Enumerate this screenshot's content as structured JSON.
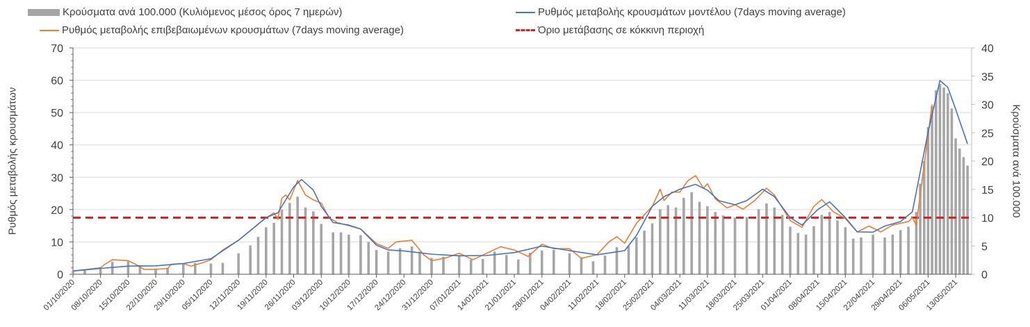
{
  "chart_data": {
    "type": "bar+line",
    "legend": [
      {
        "label": "Κρούσματα ανά 100.000 (Κυλιόμενος μέσος όρος 7 ημερών)",
        "color": "#a6a6a6",
        "kind": "bar"
      },
      {
        "label": "Ρυθμός μεταβολής κρουσμάτων μοντέλου (7days moving average)",
        "color": "#4472c4",
        "kind": "line"
      },
      {
        "label": "Ρυθμός μεταβολής επιβεβαιωμένων κρουσμάτων (7days moving average)",
        "color": "#ed7d31",
        "kind": "line"
      },
      {
        "label": "Όριο μετάβασης σε κόκκινη περιοχή",
        "color": "#e02020",
        "kind": "dashed"
      }
    ],
    "legend_position": "top",
    "ylabel_left": "Ρυθμός μεταβολής κρουσμάτων",
    "ylabel_right": "Κρούσματα ανά 100.000",
    "ylim_left": [
      0,
      70
    ],
    "ylim_right": [
      0,
      40
    ],
    "yticks_left": [
      "0",
      "10",
      "20",
      "30",
      "40",
      "50",
      "60",
      "70"
    ],
    "yticks_right": [
      "0",
      "5",
      "10",
      "15",
      "20",
      "25",
      "30",
      "35",
      "40"
    ],
    "x_start_date": "01/10/2020",
    "x_days_total": 228,
    "xtick_labels": [
      "01/10/2020",
      "08/10/2020",
      "15/10/2020",
      "22/10/2020",
      "29/10/2020",
      "05/11/2020",
      "12/11/2020",
      "19/11/2020",
      "26/11/2020",
      "03/12/2020",
      "10/12/2020",
      "17/12/2020",
      "24/12/2020",
      "31/12/2020",
      "07/01/2021",
      "14/01/2021",
      "21/01/2021",
      "28/01/2021",
      "04/02/2021",
      "11/02/2021",
      "18/02/2021",
      "25/02/2021",
      "04/03/2021",
      "11/03/2021",
      "18/03/2021",
      "25/03/2021",
      "01/04/2021",
      "08/04/2021",
      "15/04/2021",
      "22/04/2021",
      "29/04/2021",
      "06/05/2021",
      "13/05/2021"
    ],
    "xtick_step_days": 7,
    "threshold_left": 17.5,
    "threshold_right": 10,
    "bars_right_axis": [
      [
        0,
        0.6
      ],
      [
        3,
        0.8
      ],
      [
        7,
        1.2
      ],
      [
        10,
        2.2
      ],
      [
        14,
        2.3
      ],
      [
        17,
        1.6
      ],
      [
        21,
        1.0
      ],
      [
        24,
        1.1
      ],
      [
        28,
        1.8
      ],
      [
        31,
        2.0
      ],
      [
        35,
        1.9
      ],
      [
        38,
        2.0
      ],
      [
        42,
        3.7
      ],
      [
        45,
        5.1
      ],
      [
        47,
        6.6
      ],
      [
        49,
        8.3
      ],
      [
        51,
        9.1
      ],
      [
        53,
        11.4
      ],
      [
        55,
        12.6
      ],
      [
        57,
        13.7
      ],
      [
        59,
        11.8
      ],
      [
        61,
        11.1
      ],
      [
        63,
        8.9
      ],
      [
        66,
        7.4
      ],
      [
        68,
        7.4
      ],
      [
        70,
        7.0
      ],
      [
        73,
        6.9
      ],
      [
        75,
        5.7
      ],
      [
        77,
        4.3
      ],
      [
        80,
        4.0
      ],
      [
        83,
        4.6
      ],
      [
        86,
        4.9
      ],
      [
        88,
        4.0
      ],
      [
        91,
        2.9
      ],
      [
        94,
        3.1
      ],
      [
        98,
        3.4
      ],
      [
        101,
        2.6
      ],
      [
        104,
        2.7
      ],
      [
        107,
        4.0
      ],
      [
        110,
        3.4
      ],
      [
        113,
        2.6
      ],
      [
        116,
        3.8
      ],
      [
        119,
        4.2
      ],
      [
        122,
        4.3
      ],
      [
        126,
        3.7
      ],
      [
        129,
        3.0
      ],
      [
        132,
        2.3
      ],
      [
        135,
        3.3
      ],
      [
        138,
        4.8
      ],
      [
        141,
        5.0
      ],
      [
        143,
        6.5
      ],
      [
        145,
        7.7
      ],
      [
        147,
        9.0
      ],
      [
        149,
        11.5
      ],
      [
        151,
        12.2
      ],
      [
        153,
        11.8
      ],
      [
        155,
        13.5
      ],
      [
        157,
        14.5
      ],
      [
        159,
        12.8
      ],
      [
        161,
        12.0
      ],
      [
        163,
        11.0
      ],
      [
        165,
        10.4
      ],
      [
        168,
        10.0
      ],
      [
        171,
        10.1
      ],
      [
        174,
        11.5
      ],
      [
        176,
        12.5
      ],
      [
        178,
        11.8
      ],
      [
        180,
        10.5
      ],
      [
        182,
        8.4
      ],
      [
        184,
        7.3
      ],
      [
        186,
        7.0
      ],
      [
        188,
        8.5
      ],
      [
        190,
        10.5
      ],
      [
        192,
        11.0
      ],
      [
        194,
        9.5
      ],
      [
        196,
        8.3
      ],
      [
        198,
        6.3
      ],
      [
        200,
        6.5
      ],
      [
        203,
        7.0
      ],
      [
        206,
        6.5
      ],
      [
        208,
        7.0
      ],
      [
        210,
        7.8
      ],
      [
        212,
        8.4
      ],
      [
        214,
        11.0
      ],
      [
        215,
        16.0
      ],
      [
        216,
        20.0
      ],
      [
        217,
        26.0
      ],
      [
        218,
        29.7
      ],
      [
        219,
        32.5
      ],
      [
        220,
        33.6
      ],
      [
        221,
        33.0
      ],
      [
        222,
        32.0
      ],
      [
        223,
        29.3
      ],
      [
        224,
        24.0
      ],
      [
        225,
        22.2
      ],
      [
        226,
        20.7
      ],
      [
        227,
        19.2
      ]
    ],
    "model_line_left_axis": [
      [
        0,
        1
      ],
      [
        7,
        1.8
      ],
      [
        14,
        2.5
      ],
      [
        21,
        2.6
      ],
      [
        28,
        3.3
      ],
      [
        35,
        4.8
      ],
      [
        42,
        10.5
      ],
      [
        49,
        17.5
      ],
      [
        52,
        19
      ],
      [
        56,
        27
      ],
      [
        58,
        29.3
      ],
      [
        61,
        26
      ],
      [
        63,
        21
      ],
      [
        66,
        16
      ],
      [
        70,
        15.2
      ],
      [
        73,
        14
      ],
      [
        77,
        9
      ],
      [
        80,
        7.5
      ],
      [
        84,
        7.2
      ],
      [
        91,
        6.2
      ],
      [
        98,
        5.7
      ],
      [
        105,
        5.8
      ],
      [
        112,
        6.7
      ],
      [
        119,
        8.7
      ],
      [
        126,
        7.3
      ],
      [
        133,
        6.0
      ],
      [
        140,
        7.3
      ],
      [
        143,
        12
      ],
      [
        147,
        21
      ],
      [
        150,
        24
      ],
      [
        154,
        26.3
      ],
      [
        158,
        27.8
      ],
      [
        161,
        26
      ],
      [
        164,
        22.7
      ],
      [
        168,
        21.5
      ],
      [
        171,
        22.8
      ],
      [
        175,
        26.3
      ],
      [
        178,
        24
      ],
      [
        182,
        17.5
      ],
      [
        185,
        15.2
      ],
      [
        189,
        20
      ],
      [
        192,
        22.4
      ],
      [
        196,
        17.5
      ],
      [
        199,
        13.1
      ],
      [
        203,
        13
      ],
      [
        206,
        14.9
      ],
      [
        210,
        16.3
      ],
      [
        213,
        19.3
      ],
      [
        217,
        44
      ],
      [
        220,
        59.9
      ],
      [
        222,
        57.8
      ],
      [
        224,
        51
      ],
      [
        227,
        40.3
      ]
    ],
    "confirmed_line_left_axis": [
      [
        0,
        1
      ],
      [
        3.5,
        1.5
      ],
      [
        7,
        2
      ],
      [
        8,
        3
      ],
      [
        10,
        4.5
      ],
      [
        14,
        4.2
      ],
      [
        16,
        3
      ],
      [
        18,
        1.5
      ],
      [
        21,
        1.5
      ],
      [
        24,
        1.8
      ],
      [
        25,
        3.1
      ],
      [
        28,
        3.3
      ],
      [
        30,
        2.5
      ],
      [
        33,
        3.6
      ],
      [
        35,
        4.5
      ],
      [
        38,
        7.5
      ],
      [
        42,
        10.5
      ],
      [
        45,
        13.5
      ],
      [
        49,
        17.5
      ],
      [
        51,
        19
      ],
      [
        52,
        17
      ],
      [
        53,
        23.5
      ],
      [
        54,
        24.5
      ],
      [
        55,
        23
      ],
      [
        57,
        29
      ],
      [
        59,
        24.5
      ],
      [
        61,
        23
      ],
      [
        63,
        22
      ],
      [
        65,
        17.5
      ],
      [
        67,
        16
      ],
      [
        70,
        15
      ],
      [
        73,
        14
      ],
      [
        77,
        9.5
      ],
      [
        80,
        8
      ],
      [
        82,
        10
      ],
      [
        86,
        10.5
      ],
      [
        89,
        6
      ],
      [
        91,
        4.2
      ],
      [
        94.5,
        5
      ],
      [
        98,
        6.5
      ],
      [
        101.5,
        4.5
      ],
      [
        105,
        6.5
      ],
      [
        108.5,
        8.5
      ],
      [
        112,
        7.5
      ],
      [
        115.5,
        5.5
      ],
      [
        119,
        9.3
      ],
      [
        122,
        7.9
      ],
      [
        126,
        7.9
      ],
      [
        129,
        4.9
      ],
      [
        133,
        6.1
      ],
      [
        136,
        10
      ],
      [
        138,
        11.6
      ],
      [
        140,
        9.6
      ],
      [
        143,
        15.8
      ],
      [
        147,
        21
      ],
      [
        149,
        26.3
      ],
      [
        150,
        22.8
      ],
      [
        152,
        25.4
      ],
      [
        154,
        25.4
      ],
      [
        156,
        28.9
      ],
      [
        158,
        30.5
      ],
      [
        160,
        26.6
      ],
      [
        161,
        28
      ],
      [
        163,
        23.3
      ],
      [
        166,
        20.5
      ],
      [
        168,
        21.5
      ],
      [
        170,
        20.1
      ],
      [
        173,
        22.8
      ],
      [
        176,
        26.6
      ],
      [
        178,
        24.5
      ],
      [
        182,
        16.6
      ],
      [
        185,
        14.5
      ],
      [
        188,
        21
      ],
      [
        190,
        23.1
      ],
      [
        193,
        19.3
      ],
      [
        196,
        17.2
      ],
      [
        199,
        13.1
      ],
      [
        202,
        14.9
      ],
      [
        205,
        13.1
      ],
      [
        208,
        15.2
      ],
      [
        212,
        16.3
      ],
      [
        213,
        17.5
      ],
      [
        214,
        15.2
      ],
      [
        218,
        52.5
      ]
    ]
  }
}
